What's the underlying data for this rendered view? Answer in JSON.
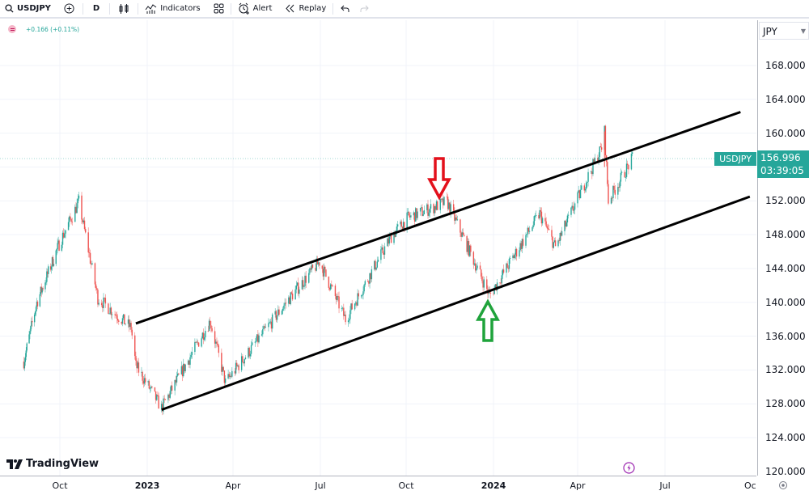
{
  "toolbar": {
    "symbol": "USDJPY",
    "interval": "D",
    "indicators_label": "Indicators",
    "alert_label": "Alert",
    "replay_label": "Replay"
  },
  "legend": {
    "change": "+0.166 (+0.11%)"
  },
  "price_axis": {
    "currency": "JPY",
    "labels": [
      "168.000",
      "164.000",
      "160.000",
      "152.000",
      "148.000",
      "144.000",
      "140.000",
      "136.000",
      "132.000",
      "128.000",
      "124.000",
      "120.000"
    ],
    "last_price": "156.996",
    "countdown": "03:39:05",
    "symbol_tag": "USDJPY"
  },
  "time_axis": {
    "labels": [
      {
        "text": "Oct",
        "bold": false
      },
      {
        "text": "2023",
        "bold": true
      },
      {
        "text": "Apr",
        "bold": false
      },
      {
        "text": "Jul",
        "bold": false
      },
      {
        "text": "Oct",
        "bold": false
      },
      {
        "text": "2024",
        "bold": true
      },
      {
        "text": "Apr",
        "bold": false
      },
      {
        "text": "Jul",
        "bold": false
      },
      {
        "text": "Oc",
        "bold": false
      }
    ]
  },
  "branding": {
    "logo_text": "TradingView"
  },
  "colors": {
    "up": "#26a69a",
    "down": "#ef5350",
    "trendline": "#000000",
    "arrow_down": "#e3101b",
    "arrow_up": "#1fa33b",
    "grid": "#f0f3fa"
  },
  "chart_data": {
    "type": "candlestick",
    "title": "USDJPY, D",
    "symbol": "USDJPY",
    "xlabel": "",
    "ylabel": "JPY",
    "ylim": [
      120,
      170
    ],
    "y_ticks": [
      120,
      124,
      128,
      132,
      136,
      140,
      144,
      148,
      152,
      160,
      164,
      168
    ],
    "x_ticks": [
      "Oct",
      "2023",
      "Apr",
      "Jul",
      "Oct",
      "2024",
      "Apr",
      "Jul",
      "Oc"
    ],
    "grid": true,
    "last_price": 156.996,
    "approx_close_path": [
      {
        "date": "2022-08",
        "price": 133.0
      },
      {
        "date": "2022-09-01",
        "price": 140.0
      },
      {
        "date": "2022-09-20",
        "price": 144.5
      },
      {
        "date": "2022-10-21",
        "price": 151.9
      },
      {
        "date": "2022-11-10",
        "price": 140.5
      },
      {
        "date": "2022-12-15",
        "price": 137.0
      },
      {
        "date": "2022-12-20",
        "price": 132.5
      },
      {
        "date": "2023-01-16",
        "price": 127.5
      },
      {
        "date": "2023-03-08",
        "price": 137.8
      },
      {
        "date": "2023-03-24",
        "price": 130.5
      },
      {
        "date": "2023-05-30",
        "price": 140.5
      },
      {
        "date": "2023-06-30",
        "price": 144.8
      },
      {
        "date": "2023-07-28",
        "price": 138.0
      },
      {
        "date": "2023-09-15",
        "price": 147.8
      },
      {
        "date": "2023-10-03",
        "price": 150.0
      },
      {
        "date": "2023-11-13",
        "price": 151.9
      },
      {
        "date": "2023-12-28",
        "price": 140.8
      },
      {
        "date": "2024-02-20",
        "price": 150.5
      },
      {
        "date": "2024-03-08",
        "price": 146.5
      },
      {
        "date": "2024-04-26",
        "price": 158.3
      },
      {
        "date": "2024-04-29",
        "price": 160.2
      },
      {
        "date": "2024-05-03",
        "price": 152.0
      },
      {
        "date": "2024-05-28",
        "price": 156.996
      }
    ],
    "trendlines": [
      {
        "name": "upper-channel",
        "from": {
          "date": "2022-12-20",
          "price": 137.5
        },
        "to": {
          "date": "2024-09-20",
          "price": 162.5
        }
      },
      {
        "name": "lower-channel",
        "from": {
          "date": "2023-01-16",
          "price": 127.3
        },
        "to": {
          "date": "2024-09-30",
          "price": 152.5
        }
      }
    ],
    "annotations": [
      {
        "type": "arrow-down",
        "color": "red",
        "date": "2023-11-13",
        "price": 152.0,
        "meaning": "touch of upper channel"
      },
      {
        "type": "arrow-up",
        "color": "green",
        "date": "2023-12-28",
        "price": 140.5,
        "meaning": "touch of lower channel"
      }
    ]
  }
}
